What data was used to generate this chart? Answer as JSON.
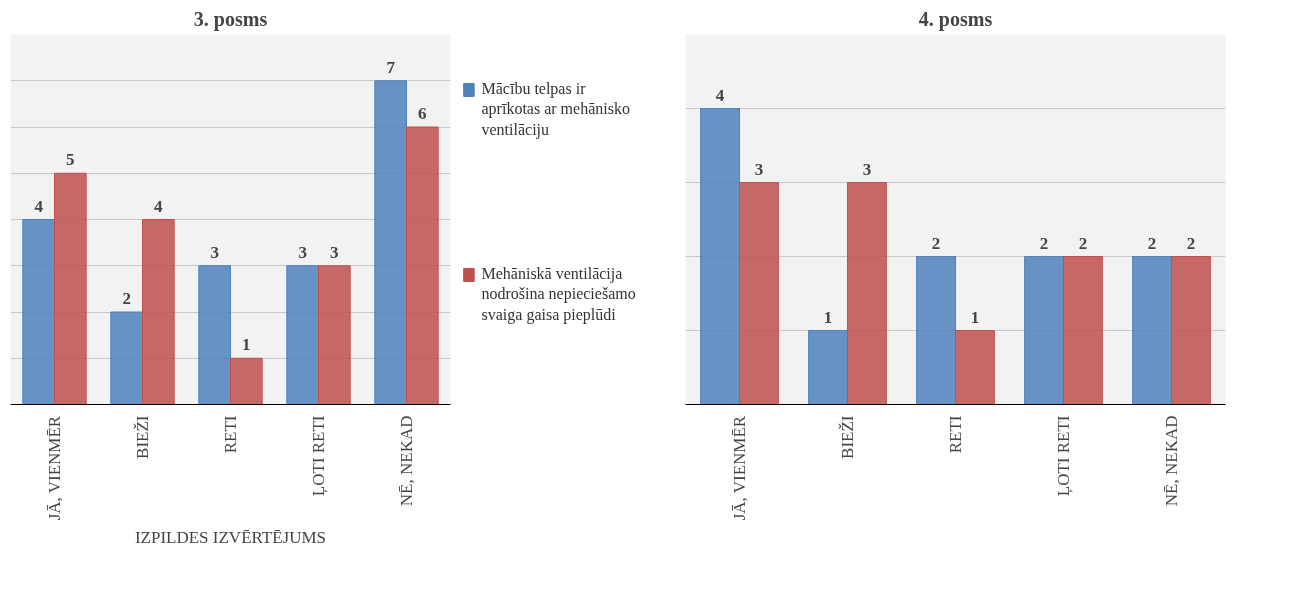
{
  "chart_data": [
    {
      "type": "bar",
      "title": "3. posms",
      "xlabel": "IZPILDES IZVĒRTĒJUMS",
      "categories": [
        "JĀ, VIENMĒR",
        "BIEŽI",
        "RETI",
        "ĻOTI RETI",
        "NĒ, NEKAD"
      ],
      "series": [
        {
          "name": "Mācību telpas ir aprīkotas ar mehānisko ventilāciju",
          "color": "#4f81bd",
          "values": [
            4,
            2,
            3,
            3,
            7
          ]
        },
        {
          "name": "Mehāniskā ventilācija nodrošina nepieciešamo svaiga gaisa pieplūdi",
          "color": "#c0504d",
          "values": [
            5,
            4,
            1,
            3,
            6
          ]
        }
      ],
      "ylim": [
        0,
        8
      ],
      "yticks": [
        {
          "value": 0,
          "label": null
        },
        {
          "value": 1,
          "label": null
        },
        {
          "value": 2,
          "label": null
        },
        {
          "value": 3,
          "label": null
        },
        {
          "value": 4,
          "label": null
        },
        {
          "value": 5,
          "label": null
        },
        {
          "value": 6,
          "label": null
        },
        {
          "value": 7,
          "label": null
        },
        {
          "value": 8,
          "label": null
        }
      ],
      "tick_labels": "x",
      "grid": "y",
      "data_labels": true,
      "legend": "right"
    },
    {
      "type": "bar",
      "title": "4. posms",
      "categories": [
        "JĀ, VIENMĒR",
        "BIEŽI",
        "RETI",
        "ĻOTI RETI",
        "NĒ, NEKAD"
      ],
      "series": [
        {
          "color": "#4f81bd",
          "values": [
            4,
            1,
            2,
            2,
            2
          ]
        },
        {
          "color": "#c0504d",
          "values": [
            3,
            3,
            1,
            2,
            2
          ]
        }
      ],
      "ylim": [
        0,
        5
      ],
      "yticks": [
        {
          "value": 0,
          "label": null
        },
        {
          "value": 1,
          "label": null
        },
        {
          "value": 2,
          "label": null
        },
        {
          "value": 3,
          "label": null
        },
        {
          "value": 4,
          "label": null
        },
        {
          "value": 5,
          "label": null
        }
      ],
      "tick_labels": "x",
      "grid": "y",
      "data_labels": true
    }
  ]
}
